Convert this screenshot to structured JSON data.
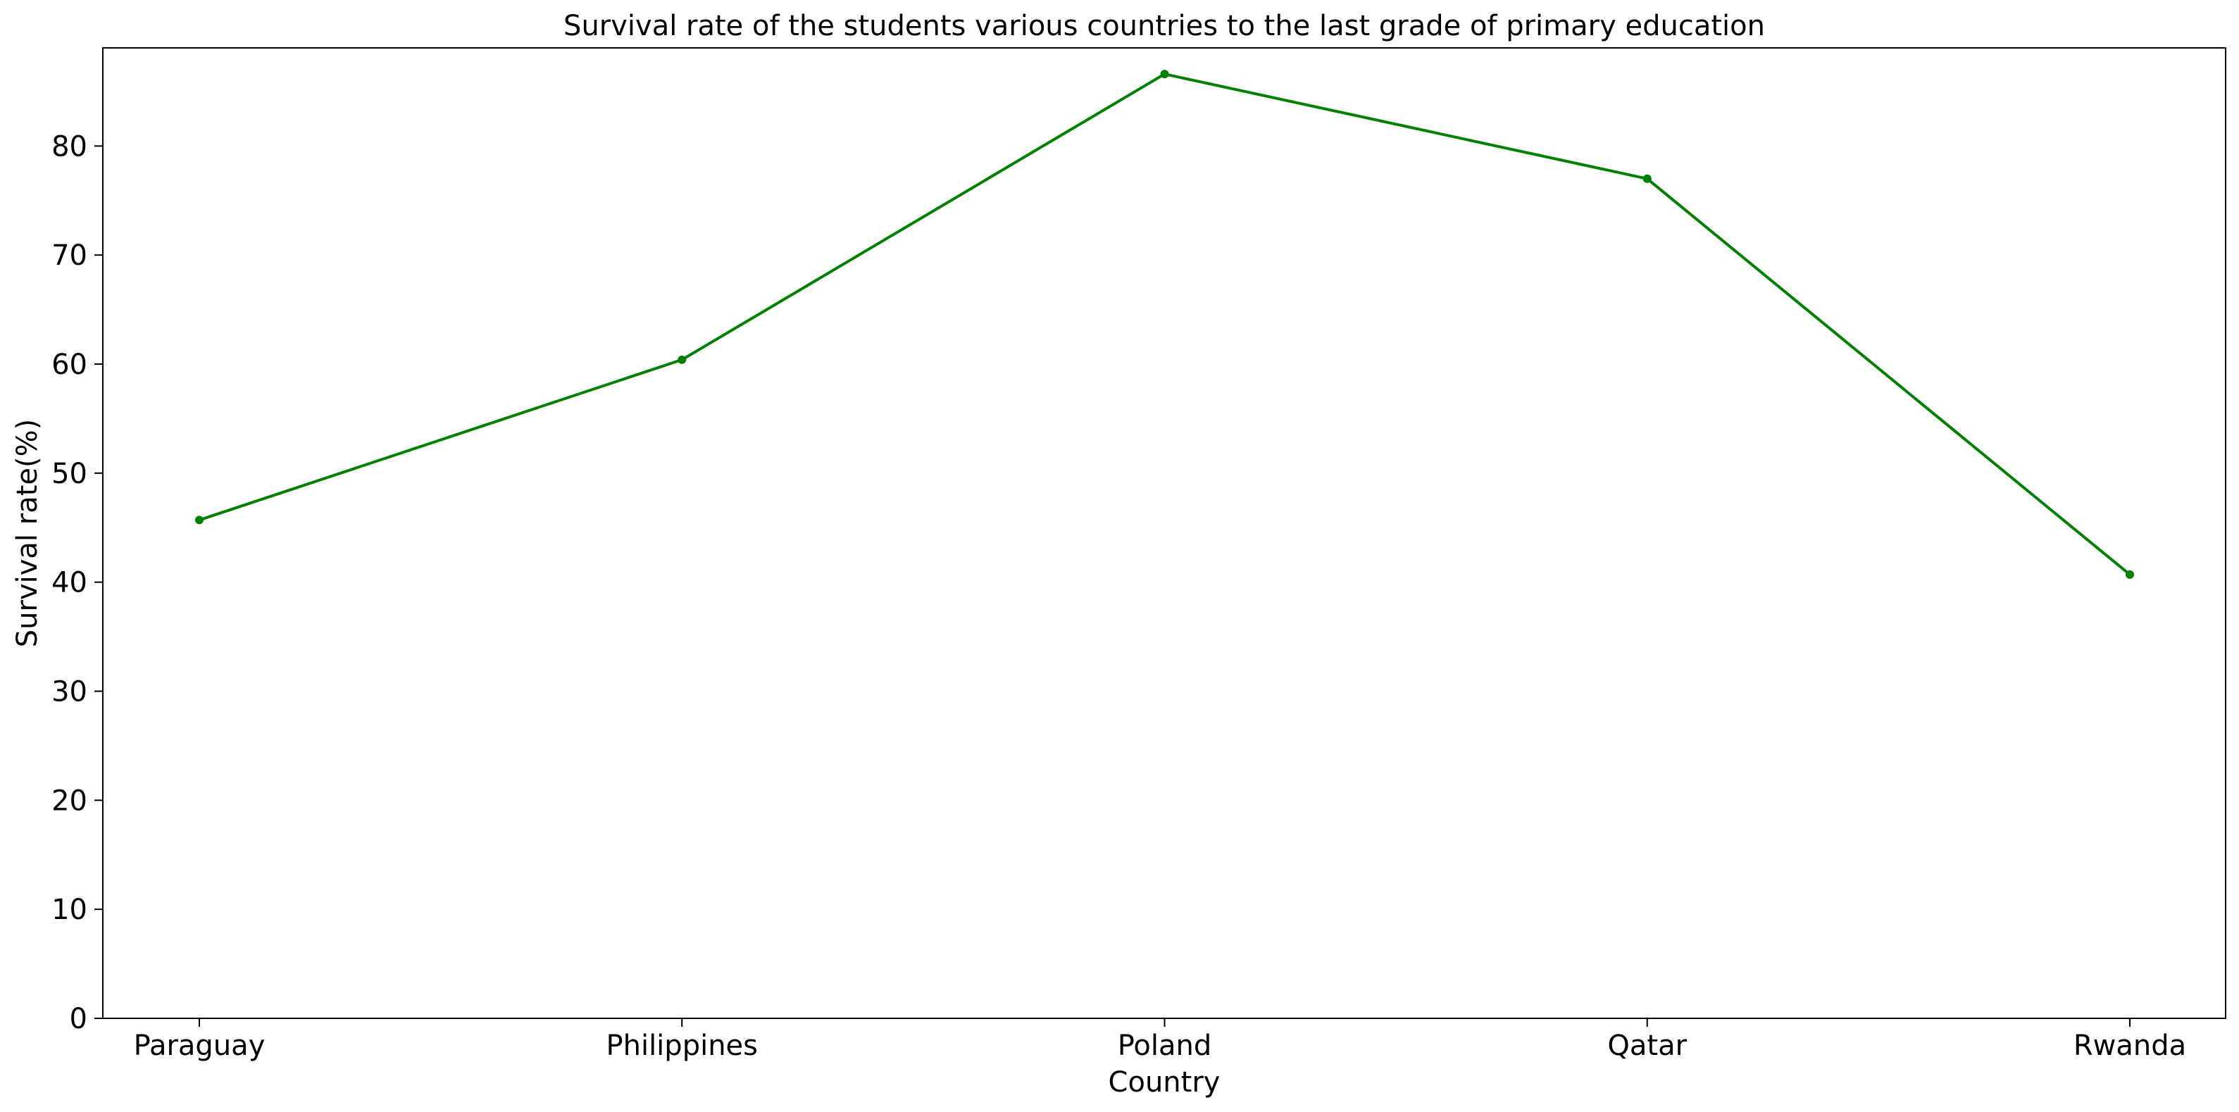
{
  "chart_data": {
    "type": "line",
    "title": "Survival rate of the students various countries to the last grade of primary education",
    "xlabel": "Country",
    "ylabel": "Survival rate(%)",
    "categories": [
      "Paraguay",
      "Philippines",
      "Poland",
      "Qatar",
      "Rwanda"
    ],
    "series": [
      {
        "values": [
          45.7,
          60.4,
          86.6,
          77.0,
          40.7
        ],
        "color": "#008000",
        "marker": "circle"
      }
    ],
    "yticks": [
      0,
      10,
      20,
      30,
      40,
      50,
      60,
      70,
      80
    ],
    "ylim": [
      0,
      89
    ],
    "grid": false,
    "legend": "none"
  }
}
